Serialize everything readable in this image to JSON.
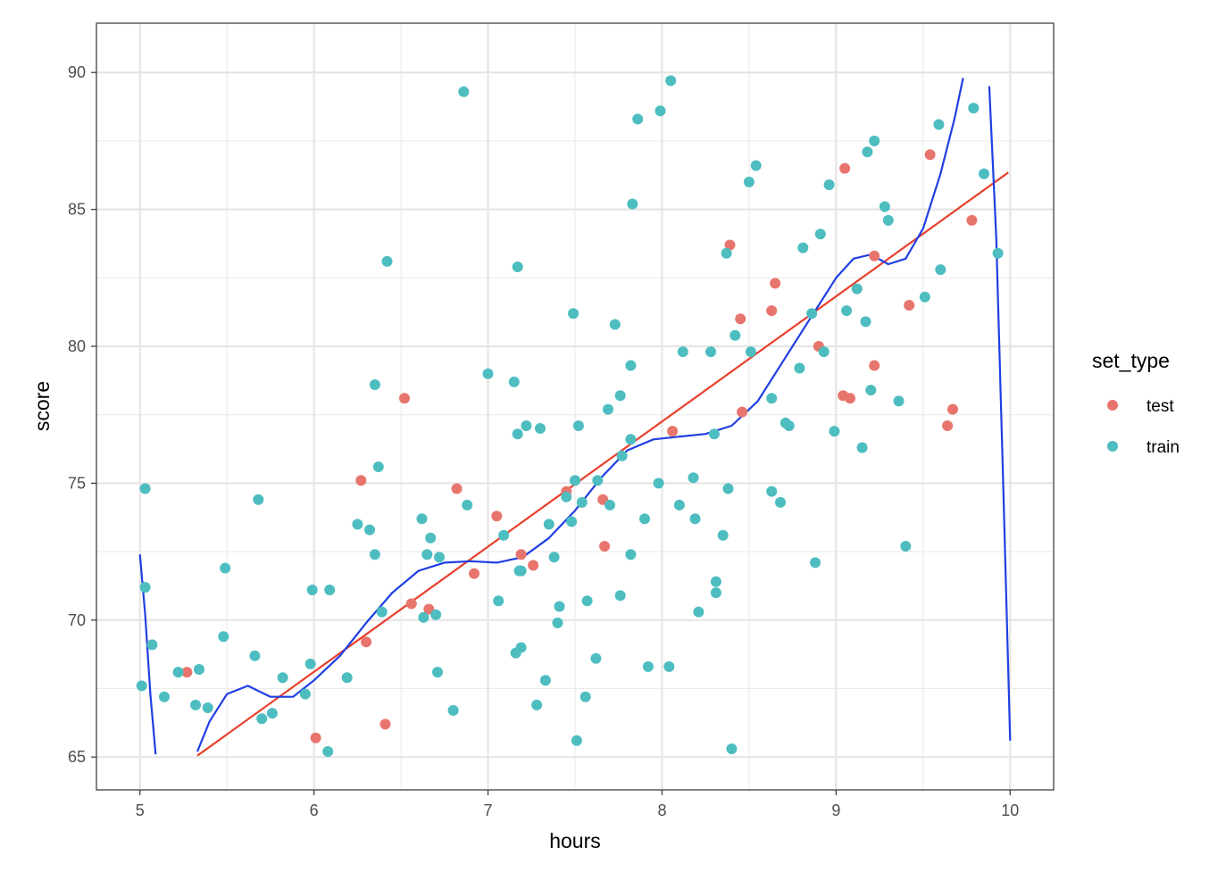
{
  "chart_data": {
    "type": "scatter",
    "xlabel": "hours",
    "ylabel": "score",
    "xlim": [
      4.75,
      10.25
    ],
    "ylim": [
      63.8,
      91.8
    ],
    "x_ticks": [
      5,
      6,
      7,
      8,
      9,
      10
    ],
    "y_ticks": [
      65,
      70,
      75,
      80,
      85,
      90
    ],
    "x_tick_labels": [
      "5",
      "6",
      "7",
      "8",
      "9",
      "10"
    ],
    "y_tick_labels": [
      "65",
      "70",
      "75",
      "80",
      "85",
      "90"
    ],
    "grid": true,
    "legend": {
      "title": "set_type",
      "position": "right",
      "entries": [
        {
          "label": "test",
          "color": "#E8756D"
        },
        {
          "label": "train",
          "color": "#4DBDC0"
        }
      ]
    },
    "series": [
      {
        "name": "test",
        "color": "#E8756D",
        "points": [
          [
            5.27,
            68.1
          ],
          [
            6.01,
            65.7
          ],
          [
            6.27,
            75.1
          ],
          [
            6.3,
            69.2
          ],
          [
            6.41,
            66.2
          ],
          [
            6.52,
            78.1
          ],
          [
            6.56,
            70.6
          ],
          [
            6.66,
            70.4
          ],
          [
            6.82,
            74.8
          ],
          [
            6.92,
            71.7
          ],
          [
            7.05,
            73.8
          ],
          [
            7.19,
            72.4
          ],
          [
            7.26,
            72.0
          ],
          [
            7.45,
            74.7
          ],
          [
            7.66,
            74.4
          ],
          [
            7.67,
            72.7
          ],
          [
            8.06,
            76.9
          ],
          [
            8.39,
            83.7
          ],
          [
            8.45,
            81.0
          ],
          [
            8.46,
            77.6
          ],
          [
            8.63,
            81.3
          ],
          [
            8.65,
            82.3
          ],
          [
            8.9,
            80.0
          ],
          [
            9.04,
            78.2
          ],
          [
            9.05,
            86.5
          ],
          [
            9.08,
            78.1
          ],
          [
            9.22,
            79.3
          ],
          [
            9.22,
            83.3
          ],
          [
            9.42,
            81.5
          ],
          [
            9.54,
            87.0
          ],
          [
            9.64,
            77.1
          ],
          [
            9.67,
            77.7
          ],
          [
            9.78,
            84.6
          ]
        ]
      },
      {
        "name": "train",
        "color": "#4DBDC0",
        "points": [
          [
            5.01,
            67.6
          ],
          [
            5.03,
            71.2
          ],
          [
            5.03,
            74.8
          ],
          [
            5.07,
            69.1
          ],
          [
            5.14,
            67.2
          ],
          [
            5.22,
            68.1
          ],
          [
            5.32,
            66.9
          ],
          [
            5.34,
            68.2
          ],
          [
            5.39,
            66.8
          ],
          [
            5.48,
            69.4
          ],
          [
            5.49,
            71.9
          ],
          [
            5.66,
            68.7
          ],
          [
            5.68,
            74.4
          ],
          [
            5.7,
            66.4
          ],
          [
            5.76,
            66.6
          ],
          [
            5.82,
            67.9
          ],
          [
            5.95,
            67.3
          ],
          [
            5.98,
            68.4
          ],
          [
            5.99,
            71.1
          ],
          [
            6.08,
            65.2
          ],
          [
            6.09,
            71.1
          ],
          [
            6.19,
            67.9
          ],
          [
            6.25,
            73.5
          ],
          [
            6.32,
            73.3
          ],
          [
            6.35,
            72.4
          ],
          [
            6.35,
            78.6
          ],
          [
            6.37,
            75.6
          ],
          [
            6.39,
            70.3
          ],
          [
            6.42,
            83.1
          ],
          [
            6.62,
            73.7
          ],
          [
            6.63,
            70.1
          ],
          [
            6.65,
            72.4
          ],
          [
            6.67,
            73.0
          ],
          [
            6.7,
            70.2
          ],
          [
            6.71,
            68.1
          ],
          [
            6.72,
            72.3
          ],
          [
            6.8,
            66.7
          ],
          [
            6.86,
            89.3
          ],
          [
            6.88,
            74.2
          ],
          [
            7.0,
            79.0
          ],
          [
            7.06,
            70.7
          ],
          [
            7.09,
            73.1
          ],
          [
            7.15,
            78.7
          ],
          [
            7.16,
            68.8
          ],
          [
            7.17,
            76.8
          ],
          [
            7.17,
            82.9
          ],
          [
            7.18,
            71.8
          ],
          [
            7.19,
            69.0
          ],
          [
            7.19,
            71.8
          ],
          [
            7.22,
            77.1
          ],
          [
            7.28,
            66.9
          ],
          [
            7.3,
            77.0
          ],
          [
            7.33,
            67.8
          ],
          [
            7.35,
            73.5
          ],
          [
            7.38,
            72.3
          ],
          [
            7.4,
            69.9
          ],
          [
            7.41,
            70.5
          ],
          [
            7.45,
            74.5
          ],
          [
            7.48,
            73.6
          ],
          [
            7.49,
            81.2
          ],
          [
            7.5,
            75.1
          ],
          [
            7.51,
            65.6
          ],
          [
            7.52,
            77.1
          ],
          [
            7.54,
            74.3
          ],
          [
            7.56,
            67.2
          ],
          [
            7.57,
            70.7
          ],
          [
            7.62,
            68.6
          ],
          [
            7.63,
            75.1
          ],
          [
            7.69,
            77.7
          ],
          [
            7.7,
            74.2
          ],
          [
            7.73,
            80.8
          ],
          [
            7.76,
            70.9
          ],
          [
            7.76,
            78.2
          ],
          [
            7.77,
            76.0
          ],
          [
            7.82,
            76.6
          ],
          [
            7.82,
            72.4
          ],
          [
            7.82,
            79.3
          ],
          [
            7.83,
            85.2
          ],
          [
            7.86,
            88.3
          ],
          [
            7.9,
            73.7
          ],
          [
            7.92,
            68.3
          ],
          [
            7.98,
            75.0
          ],
          [
            7.99,
            88.6
          ],
          [
            8.04,
            68.3
          ],
          [
            8.05,
            89.7
          ],
          [
            8.1,
            74.2
          ],
          [
            8.12,
            79.8
          ],
          [
            8.18,
            75.2
          ],
          [
            8.19,
            73.7
          ],
          [
            8.21,
            70.3
          ],
          [
            8.28,
            79.8
          ],
          [
            8.3,
            76.8
          ],
          [
            8.31,
            71.4
          ],
          [
            8.31,
            71.0
          ],
          [
            8.35,
            73.1
          ],
          [
            8.37,
            83.4
          ],
          [
            8.38,
            74.8
          ],
          [
            8.4,
            65.3
          ],
          [
            8.42,
            80.4
          ],
          [
            8.5,
            86.0
          ],
          [
            8.51,
            79.8
          ],
          [
            8.54,
            86.6
          ],
          [
            8.63,
            78.1
          ],
          [
            8.63,
            74.7
          ],
          [
            8.68,
            74.3
          ],
          [
            8.71,
            77.2
          ],
          [
            8.73,
            77.1
          ],
          [
            8.79,
            79.2
          ],
          [
            8.81,
            83.6
          ],
          [
            8.86,
            81.2
          ],
          [
            8.88,
            72.1
          ],
          [
            8.91,
            84.1
          ],
          [
            8.93,
            79.8
          ],
          [
            8.96,
            85.9
          ],
          [
            8.99,
            76.9
          ],
          [
            9.06,
            81.3
          ],
          [
            9.12,
            82.1
          ],
          [
            9.15,
            76.3
          ],
          [
            9.17,
            80.9
          ],
          [
            9.18,
            87.1
          ],
          [
            9.2,
            78.4
          ],
          [
            9.22,
            87.5
          ],
          [
            9.28,
            85.1
          ],
          [
            9.3,
            84.6
          ],
          [
            9.36,
            78.0
          ],
          [
            9.4,
            72.7
          ],
          [
            9.51,
            81.8
          ],
          [
            9.59,
            88.1
          ],
          [
            9.6,
            82.8
          ],
          [
            9.79,
            88.7
          ],
          [
            9.85,
            86.3
          ],
          [
            9.93,
            83.4
          ]
        ]
      }
    ],
    "lines": [
      {
        "name": "linear fit",
        "color": "#E8412E",
        "points": [
          [
            5.33,
            65.05
          ],
          [
            9.99,
            86.35
          ]
        ]
      },
      {
        "name": "polynomial fit",
        "color": "#1F3FE3",
        "segments": [
          [
            [
              5.0,
              72.4
            ],
            [
              5.03,
              70.2
            ],
            [
              5.06,
              67.3
            ],
            [
              5.09,
              65.1
            ]
          ],
          [
            [
              5.33,
              65.2
            ],
            [
              5.4,
              66.3
            ],
            [
              5.5,
              67.3
            ],
            [
              5.62,
              67.6
            ],
            [
              5.75,
              67.2
            ],
            [
              5.88,
              67.2
            ],
            [
              6.0,
              67.8
            ],
            [
              6.15,
              68.7
            ],
            [
              6.3,
              69.9
            ],
            [
              6.45,
              71.0
            ],
            [
              6.6,
              71.8
            ],
            [
              6.75,
              72.1
            ],
            [
              6.9,
              72.15
            ],
            [
              7.05,
              72.1
            ],
            [
              7.2,
              72.3
            ],
            [
              7.35,
              73.0
            ],
            [
              7.5,
              74.0
            ],
            [
              7.65,
              75.2
            ],
            [
              7.8,
              76.2
            ],
            [
              7.95,
              76.6
            ],
            [
              8.1,
              76.7
            ],
            [
              8.25,
              76.8
            ],
            [
              8.4,
              77.1
            ],
            [
              8.55,
              78.0
            ],
            [
              8.7,
              79.5
            ],
            [
              8.85,
              81.0
            ],
            [
              9.0,
              82.5
            ],
            [
              9.1,
              83.2
            ],
            [
              9.2,
              83.35
            ],
            [
              9.3,
              83.0
            ],
            [
              9.4,
              83.2
            ],
            [
              9.5,
              84.3
            ],
            [
              9.6,
              86.3
            ],
            [
              9.68,
              88.3
            ],
            [
              9.73,
              89.8
            ]
          ],
          [
            [
              9.88,
              89.5
            ],
            [
              9.92,
              84.0
            ],
            [
              9.96,
              75.0
            ],
            [
              10.0,
              65.6
            ]
          ]
        ]
      }
    ]
  }
}
